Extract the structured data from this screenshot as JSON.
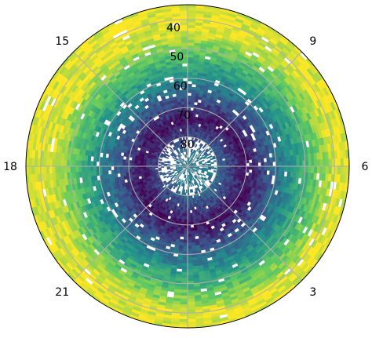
{
  "chart_data": {
    "type": "heatmap",
    "title": "",
    "projection": "polar",
    "origin": "north pole at center",
    "angular_axis": {
      "quantity": "hour",
      "ticks": [
        {
          "hour": 0,
          "label": ""
        },
        {
          "hour": 3,
          "label": "3"
        },
        {
          "hour": 6,
          "label": "6"
        },
        {
          "hour": 9,
          "label": "9"
        },
        {
          "hour": 12,
          "label": ""
        },
        {
          "hour": 15,
          "label": "15"
        },
        {
          "hour": 18,
          "label": "18"
        },
        {
          "hour": 21,
          "label": "21"
        }
      ],
      "zero_direction": "bottom",
      "direction": "counterclockwise"
    },
    "radial_axis": {
      "quantity": "latitude",
      "ticks": [
        {
          "value": 40,
          "label": "40"
        },
        {
          "value": 50,
          "label": "50"
        },
        {
          "value": 60,
          "label": "60"
        },
        {
          "value": 70,
          "label": "70"
        },
        {
          "value": 80,
          "label": "80"
        }
      ],
      "range": [
        90,
        35
      ],
      "label_hour": 12
    },
    "grid": true,
    "colormap": [
      "#440154",
      "#3b528b",
      "#21918c",
      "#5ec962",
      "#fde725"
    ],
    "value_range": [
      0,
      1
    ],
    "missing_data_color": "#ffffff",
    "field_pattern": [
      {
        "latitude": 85,
        "level": 0.4
      },
      {
        "latitude": 72,
        "level": 0.05
      },
      {
        "latitude": 62,
        "level": 0.35
      },
      {
        "latitude": 52,
        "level": 0.65
      },
      {
        "latitude": 42,
        "level": 0.95
      }
    ]
  }
}
